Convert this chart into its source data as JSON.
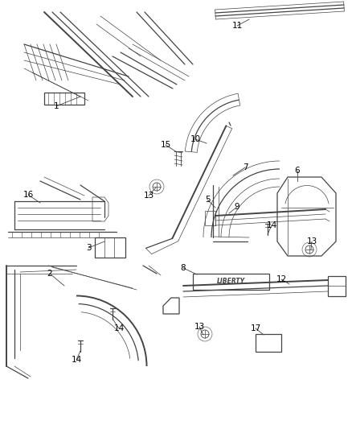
{
  "background_color": "#ffffff",
  "line_color": "#444444",
  "label_color": "#000000",
  "label_fontsize": 7.5,
  "fig_w": 4.38,
  "fig_h": 5.33,
  "dpi": 100
}
